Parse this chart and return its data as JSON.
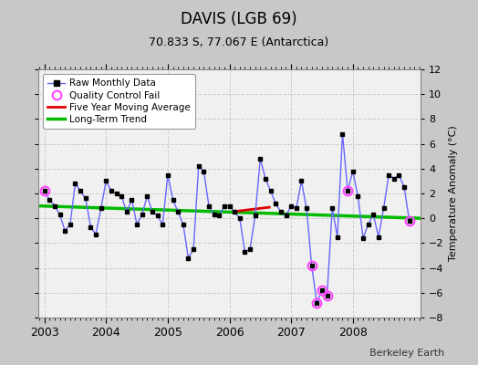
{
  "title": "DAVIS (LGB 69)",
  "subtitle": "70.833 S, 77.067 E (Antarctica)",
  "ylabel": "Temperature Anomaly (°C)",
  "credit": "Berkeley Earth",
  "ylim": [
    -8,
    12
  ],
  "yticks": [
    -8,
    -6,
    -4,
    -2,
    0,
    2,
    4,
    6,
    8,
    10,
    12
  ],
  "xlim_start": 2002.9,
  "xlim_end": 2009.1,
  "bg_color": "#c8c8c8",
  "plot_bg_color": "#f0f0f0",
  "raw_x": [
    2003.0,
    2003.083,
    2003.167,
    2003.25,
    2003.333,
    2003.417,
    2003.5,
    2003.583,
    2003.667,
    2003.75,
    2003.833,
    2003.917,
    2004.0,
    2004.083,
    2004.167,
    2004.25,
    2004.333,
    2004.417,
    2004.5,
    2004.583,
    2004.667,
    2004.75,
    2004.833,
    2004.917,
    2005.0,
    2005.083,
    2005.167,
    2005.25,
    2005.333,
    2005.417,
    2005.5,
    2005.583,
    2005.667,
    2005.75,
    2005.833,
    2005.917,
    2006.0,
    2006.083,
    2006.167,
    2006.25,
    2006.333,
    2006.417,
    2006.5,
    2006.583,
    2006.667,
    2006.75,
    2006.833,
    2006.917,
    2007.0,
    2007.083,
    2007.167,
    2007.25,
    2007.333,
    2007.417,
    2007.5,
    2007.583,
    2007.667,
    2007.75,
    2007.833,
    2007.917,
    2008.0,
    2008.083,
    2008.167,
    2008.25,
    2008.333,
    2008.417,
    2008.5,
    2008.583,
    2008.667,
    2008.75,
    2008.833,
    2008.917
  ],
  "raw_y": [
    2.2,
    1.5,
    1.0,
    0.3,
    -1.0,
    -0.5,
    2.8,
    2.2,
    1.6,
    -0.7,
    -1.3,
    0.8,
    3.0,
    2.2,
    2.0,
    1.8,
    0.5,
    1.5,
    -0.5,
    0.3,
    1.8,
    0.5,
    0.2,
    -0.5,
    3.5,
    1.5,
    0.5,
    -0.5,
    -3.2,
    -2.5,
    4.2,
    3.8,
    1.0,
    0.3,
    0.2,
    1.0,
    1.0,
    0.5,
    0.0,
    -2.7,
    -2.5,
    0.2,
    4.8,
    3.2,
    2.2,
    1.2,
    0.5,
    0.2,
    1.0,
    0.8,
    3.0,
    0.8,
    -3.8,
    -6.8,
    -5.8,
    -6.2,
    0.8,
    -1.5,
    6.8,
    2.2,
    3.8,
    1.8,
    -1.6,
    -0.5,
    0.3,
    -1.5,
    0.8,
    3.5,
    3.2,
    3.5,
    2.5,
    -0.2
  ],
  "qc_fail_x": [
    2003.0,
    2007.333,
    2007.417,
    2007.5,
    2007.583,
    2007.917,
    2008.917
  ],
  "qc_fail_y": [
    2.2,
    -3.8,
    -6.8,
    -5.8,
    -6.2,
    2.2,
    -0.2
  ],
  "ma_x": [
    2006.083,
    2006.167,
    2006.25,
    2006.333,
    2006.417,
    2006.5,
    2006.583,
    2006.667
  ],
  "ma_y": [
    0.5,
    0.6,
    0.65,
    0.7,
    0.75,
    0.8,
    0.85,
    0.9
  ],
  "trend_x": [
    2002.9,
    2009.1
  ],
  "trend_y": [
    1.0,
    0.0
  ],
  "line_color": "#6666ff",
  "marker_color": "#000000",
  "qc_color": "#ff44ff",
  "ma_color": "#dd0000",
  "trend_color": "#00bb00",
  "grid_color": "#cccccc"
}
